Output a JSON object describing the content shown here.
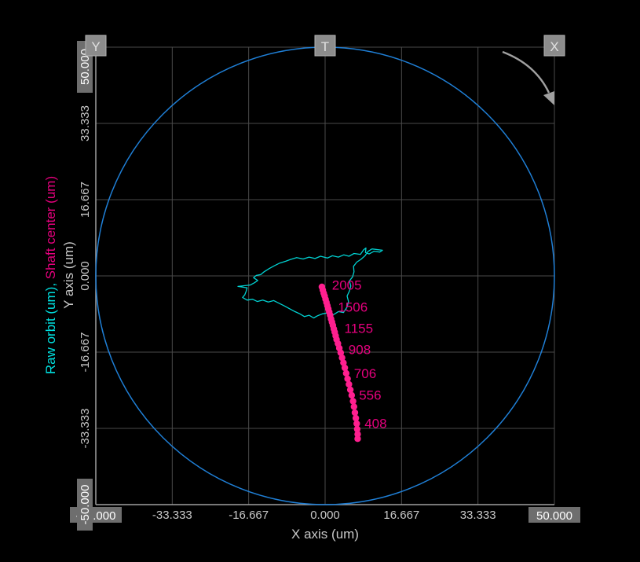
{
  "chart_data": {
    "type": "scatter",
    "xlabel": "X axis (um)",
    "ylabel": "Y axis (um)",
    "ylabel_series": [
      {
        "text": "Raw orbit (um)",
        "color": "#00e0e0"
      },
      {
        "text": ", ",
        "color": "#00e0e0"
      },
      {
        "text": "Shaft center (um)",
        "color": "#e6007e"
      }
    ],
    "xlim": [
      -50,
      50
    ],
    "ylim": [
      -50,
      50
    ],
    "x_ticks": [
      "-50.000",
      "-33.333",
      "-16.667",
      "0.000",
      "16.667",
      "33.333",
      "50.000"
    ],
    "y_ticks": [
      "-50.000",
      "-33.333",
      "-16.667",
      "0.000",
      "16.667",
      "33.333",
      "50.000"
    ],
    "grid": true,
    "clearance_circle": {
      "radius": 50,
      "color": "#1f7fd6"
    },
    "probe_markers": [
      {
        "label": "Y",
        "position": "top-left"
      },
      {
        "label": "T",
        "position": "top-center"
      },
      {
        "label": "X",
        "position": "top-right"
      }
    ],
    "rotation_arrow": {
      "direction": "clockwise",
      "position": "top-right",
      "color": "#a0a0a0"
    },
    "series": [
      {
        "name": "Raw orbit",
        "type": "line",
        "color": "#00d2d2",
        "points": [
          [
            10.2,
            5.9
          ],
          [
            12.5,
            5.6
          ],
          [
            11.9,
            5.2
          ],
          [
            10.7,
            5.4
          ],
          [
            9.6,
            4.8
          ],
          [
            8.8,
            5.1
          ],
          [
            8.9,
            6.1
          ],
          [
            8.4,
            5.7
          ],
          [
            7.7,
            4.7
          ],
          [
            6.3,
            4.9
          ],
          [
            5.2,
            4.3
          ],
          [
            4.1,
            4.6
          ],
          [
            2.9,
            4.1
          ],
          [
            1.6,
            4.4
          ],
          [
            0.5,
            3.9
          ],
          [
            -1.0,
            4.3
          ],
          [
            -2.2,
            3.8
          ],
          [
            -3.5,
            4.1
          ],
          [
            -4.8,
            3.7
          ],
          [
            -6.2,
            4.0
          ],
          [
            -7.5,
            3.6
          ],
          [
            -8.6,
            3.2
          ],
          [
            -9.9,
            2.8
          ],
          [
            -11.1,
            2.2
          ],
          [
            -12.2,
            1.6
          ],
          [
            -13.3,
            0.9
          ],
          [
            -14.0,
            0.3
          ],
          [
            -15.0,
            0.1
          ],
          [
            -15.6,
            -0.4
          ],
          [
            -14.7,
            -1.0
          ],
          [
            -15.4,
            -1.5
          ],
          [
            -16.3,
            -2.0
          ],
          [
            -19.0,
            -2.3
          ],
          [
            -17.0,
            -2.6
          ],
          [
            -17.2,
            -3.3
          ],
          [
            -17.5,
            -4.1
          ],
          [
            -18.0,
            -4.7
          ],
          [
            -17.0,
            -5.3
          ],
          [
            -15.8,
            -5.1
          ],
          [
            -14.8,
            -5.6
          ],
          [
            -13.6,
            -5.3
          ],
          [
            -12.4,
            -5.7
          ],
          [
            -11.2,
            -5.4
          ],
          [
            -10.0,
            -6.0
          ],
          [
            -8.8,
            -6.6
          ],
          [
            -7.7,
            -7.2
          ],
          [
            -6.6,
            -7.8
          ],
          [
            -5.5,
            -8.3
          ],
          [
            -4.5,
            -8.9
          ],
          [
            -3.5,
            -8.6
          ],
          [
            -2.5,
            -9.2
          ],
          [
            -1.6,
            -8.7
          ],
          [
            -0.6,
            -8.3
          ],
          [
            0.5,
            -8.1
          ],
          [
            1.8,
            -8.5
          ],
          [
            2.9,
            -7.8
          ],
          [
            4.0,
            -8.0
          ],
          [
            4.8,
            -6.8
          ],
          [
            5.1,
            -5.6
          ],
          [
            4.8,
            -4.4
          ],
          [
            5.3,
            -3.3
          ],
          [
            5.6,
            -2.2
          ],
          [
            5.3,
            -1.1
          ],
          [
            6.0,
            -0.2
          ],
          [
            6.3,
            0.9
          ],
          [
            6.2,
            2.1
          ],
          [
            6.9,
            3.0
          ],
          [
            7.8,
            3.6
          ],
          [
            8.7,
            4.4
          ],
          [
            9.3,
            5.3
          ],
          [
            10.2,
            5.9
          ]
        ]
      },
      {
        "name": "Shaft center",
        "type": "scatter-line",
        "color": "#ff1f8f",
        "points": [
          [
            -0.7,
            -2.4
          ],
          [
            -0.5,
            -3.1
          ],
          [
            -0.3,
            -3.8
          ],
          [
            -0.1,
            -4.4
          ],
          [
            0.1,
            -5.1
          ],
          [
            0.3,
            -5.8
          ],
          [
            0.5,
            -6.5
          ],
          [
            0.7,
            -7.2
          ],
          [
            0.9,
            -7.9
          ],
          [
            1.1,
            -8.6
          ],
          [
            1.3,
            -9.4
          ],
          [
            1.5,
            -10.1
          ],
          [
            1.7,
            -10.8
          ],
          [
            1.9,
            -11.6
          ],
          [
            2.1,
            -12.3
          ],
          [
            2.3,
            -13.1
          ],
          [
            2.5,
            -13.9
          ],
          [
            2.8,
            -14.8
          ],
          [
            3.1,
            -15.8
          ],
          [
            3.4,
            -16.8
          ],
          [
            3.7,
            -17.9
          ],
          [
            4.0,
            -19.0
          ],
          [
            4.3,
            -20.1
          ],
          [
            4.6,
            -21.3
          ],
          [
            4.9,
            -22.5
          ],
          [
            5.2,
            -23.7
          ],
          [
            5.5,
            -24.9
          ],
          [
            5.8,
            -26.1
          ],
          [
            6.1,
            -27.4
          ],
          [
            6.3,
            -28.6
          ],
          [
            6.5,
            -29.9
          ],
          [
            6.7,
            -31.1
          ],
          [
            6.9,
            -32.3
          ],
          [
            7.0,
            -33.5
          ],
          [
            7.1,
            -34.6
          ],
          [
            7.1,
            -35.6
          ]
        ]
      }
    ],
    "rpm_labels": [
      {
        "text": "2005",
        "x": 1.5,
        "y": -2.0
      },
      {
        "text": "1506",
        "x": 2.8,
        "y": -6.8
      },
      {
        "text": "1155",
        "x": 4.2,
        "y": -11.4
      },
      {
        "text": "908",
        "x": 5.1,
        "y": -16.1
      },
      {
        "text": "706",
        "x": 6.3,
        "y": -21.3
      },
      {
        "text": "556",
        "x": 7.4,
        "y": -26.0
      },
      {
        "text": "408",
        "x": 8.6,
        "y": -32.2
      }
    ]
  }
}
